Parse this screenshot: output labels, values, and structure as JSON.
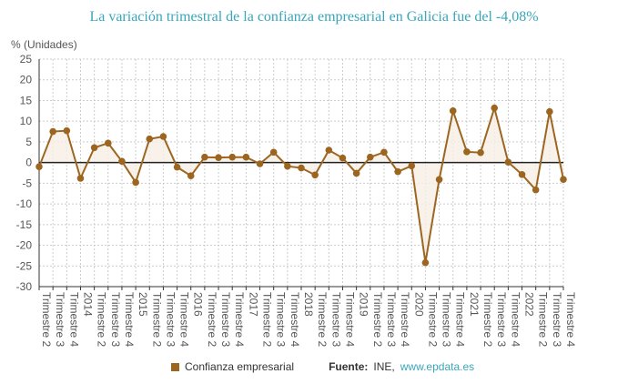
{
  "chart_data": {
    "type": "line",
    "title": "La variación trimestral de la confianza empresarial en Galicia fue del -4,08%",
    "ylabel": "% (Unidades)",
    "xlabel": "",
    "ylim": [
      -30,
      25
    ],
    "yticks": [
      25,
      20,
      15,
      10,
      5,
      0,
      -5,
      -10,
      -15,
      -20,
      -25,
      -30
    ],
    "grid": true,
    "legend_position": "bottom",
    "categories": [
      "Trimestre 2",
      "Trimestre 3",
      "Trimestre 4",
      "2014",
      "Trimestre 2",
      "Trimestre 3",
      "Trimestre 4",
      "2015",
      "Trimestre 2",
      "Trimestre 3",
      "Trimestre 4",
      "2016",
      "Trimestre 2",
      "Trimestre 3",
      "Trimestre 4",
      "2017",
      "Trimestre 2",
      "Trimestre 3",
      "Trimestre 4",
      "2018",
      "Trimestre 2",
      "Trimestre 3",
      "Trimestre 4",
      "2019",
      "Trimestre 2",
      "Trimestre 3",
      "Trimestre 4",
      "2020",
      "Trimestre 2",
      "Trimestre 3",
      "Trimestre 4",
      "2021",
      "Trimestre 2",
      "Trimestre 3",
      "Trimestre 4",
      "2022",
      "Trimestre 2",
      "Trimestre 3",
      "Trimestre 4"
    ],
    "series": [
      {
        "name": "Confianza empresarial",
        "color": "#9c6621",
        "values": [
          -1.0,
          7.5,
          7.7,
          -3.8,
          3.6,
          4.7,
          0.3,
          -4.8,
          5.7,
          6.3,
          -1.1,
          -3.2,
          1.3,
          1.2,
          1.3,
          1.3,
          -0.3,
          2.5,
          -0.9,
          -1.3,
          -3.0,
          3.0,
          1.1,
          -2.6,
          1.3,
          2.5,
          -2.2,
          -0.8,
          -24.2,
          -4.1,
          12.5,
          2.6,
          2.4,
          13.2,
          0.1,
          -2.9,
          -6.6,
          12.3,
          -4.08
        ]
      }
    ]
  },
  "legend": {
    "label": "Confianza empresarial"
  },
  "source": {
    "label": "Fuente:",
    "text": "INE,",
    "link": "www.epdata.es"
  },
  "colors": {
    "title": "#3aa6b9",
    "series": "#9c6621",
    "fill": "#f6efe6"
  }
}
